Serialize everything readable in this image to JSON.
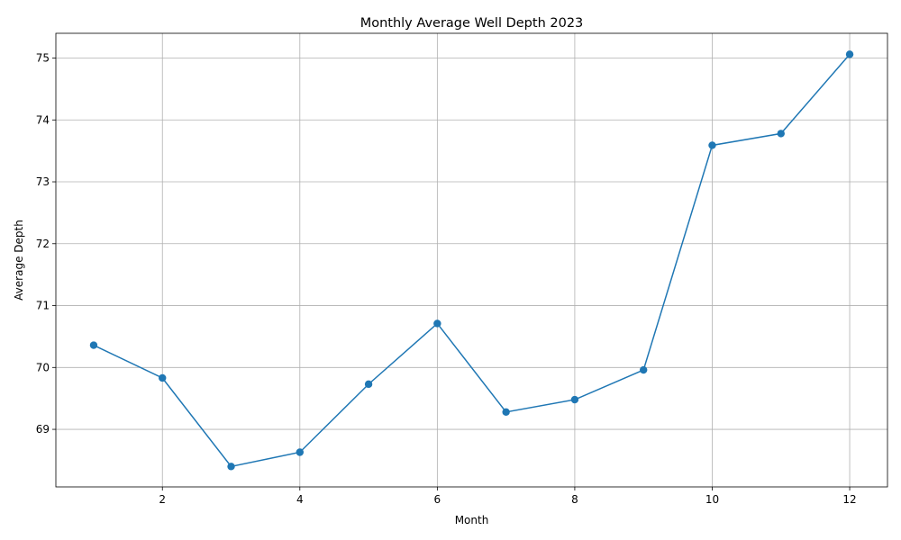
{
  "chart_data": {
    "type": "line",
    "title": "Monthly Average Well Depth 2023",
    "xlabel": "Month",
    "ylabel": "Average Depth",
    "x": [
      1,
      2,
      3,
      4,
      5,
      6,
      7,
      8,
      9,
      10,
      11,
      12
    ],
    "series": [
      {
        "values": [
          70.36,
          69.83,
          68.4,
          68.63,
          69.73,
          70.71,
          69.28,
          69.48,
          69.96,
          73.59,
          73.78,
          75.06
        ]
      }
    ],
    "xlim": [
      0.45,
      12.55
    ],
    "ylim": [
      68.07,
      75.4
    ],
    "xticks": [
      2,
      4,
      6,
      8,
      10,
      12
    ],
    "yticks": [
      69,
      70,
      71,
      72,
      73,
      74,
      75
    ],
    "grid": true,
    "marker": "circle",
    "color": "#1f77b4"
  }
}
